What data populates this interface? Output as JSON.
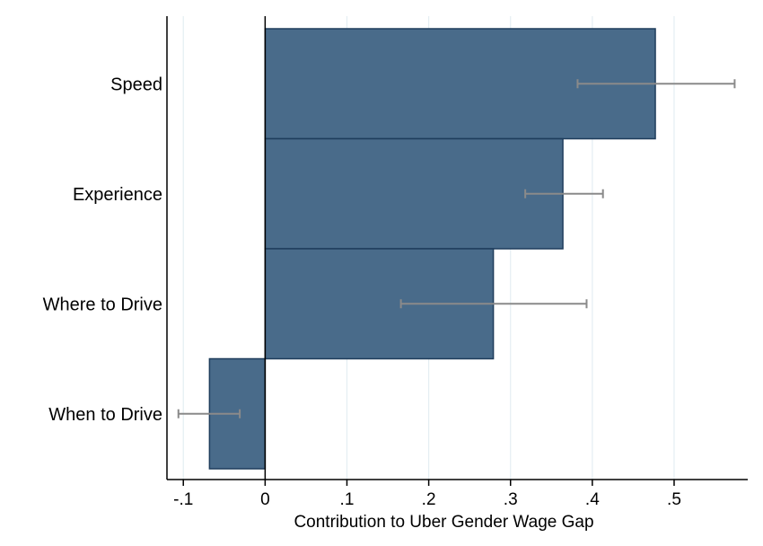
{
  "chart_data": {
    "type": "bar",
    "orientation": "horizontal",
    "title": "",
    "xlabel": "Contribution to Uber Gender Wage Gap",
    "ylabel": "",
    "categories": [
      "Speed",
      "Experience",
      "Where to Drive",
      "When to Drive"
    ],
    "values": [
      0.477,
      0.364,
      0.279,
      -0.068
    ],
    "error_bars": [
      {
        "low": 0.382,
        "high": 0.574
      },
      {
        "low": 0.318,
        "high": 0.413
      },
      {
        "low": 0.166,
        "high": 0.393
      },
      {
        "low": -0.106,
        "high": -0.031
      }
    ],
    "xlim": [
      -0.12,
      0.59
    ],
    "xticks": [
      -0.1,
      0,
      0.1,
      0.2,
      0.3,
      0.4,
      0.5
    ],
    "xtick_labels": [
      "-.1",
      "0",
      ".1",
      ".2",
      ".3",
      ".4",
      ".5"
    ],
    "grid": true,
    "legend": "none",
    "colors": {
      "bar_fill": "#496b8a",
      "bar_stroke": "#1f3d5c",
      "error_bar": "#8a8a8a",
      "grid": "#e4eef2",
      "zero_line": "#000000"
    }
  }
}
